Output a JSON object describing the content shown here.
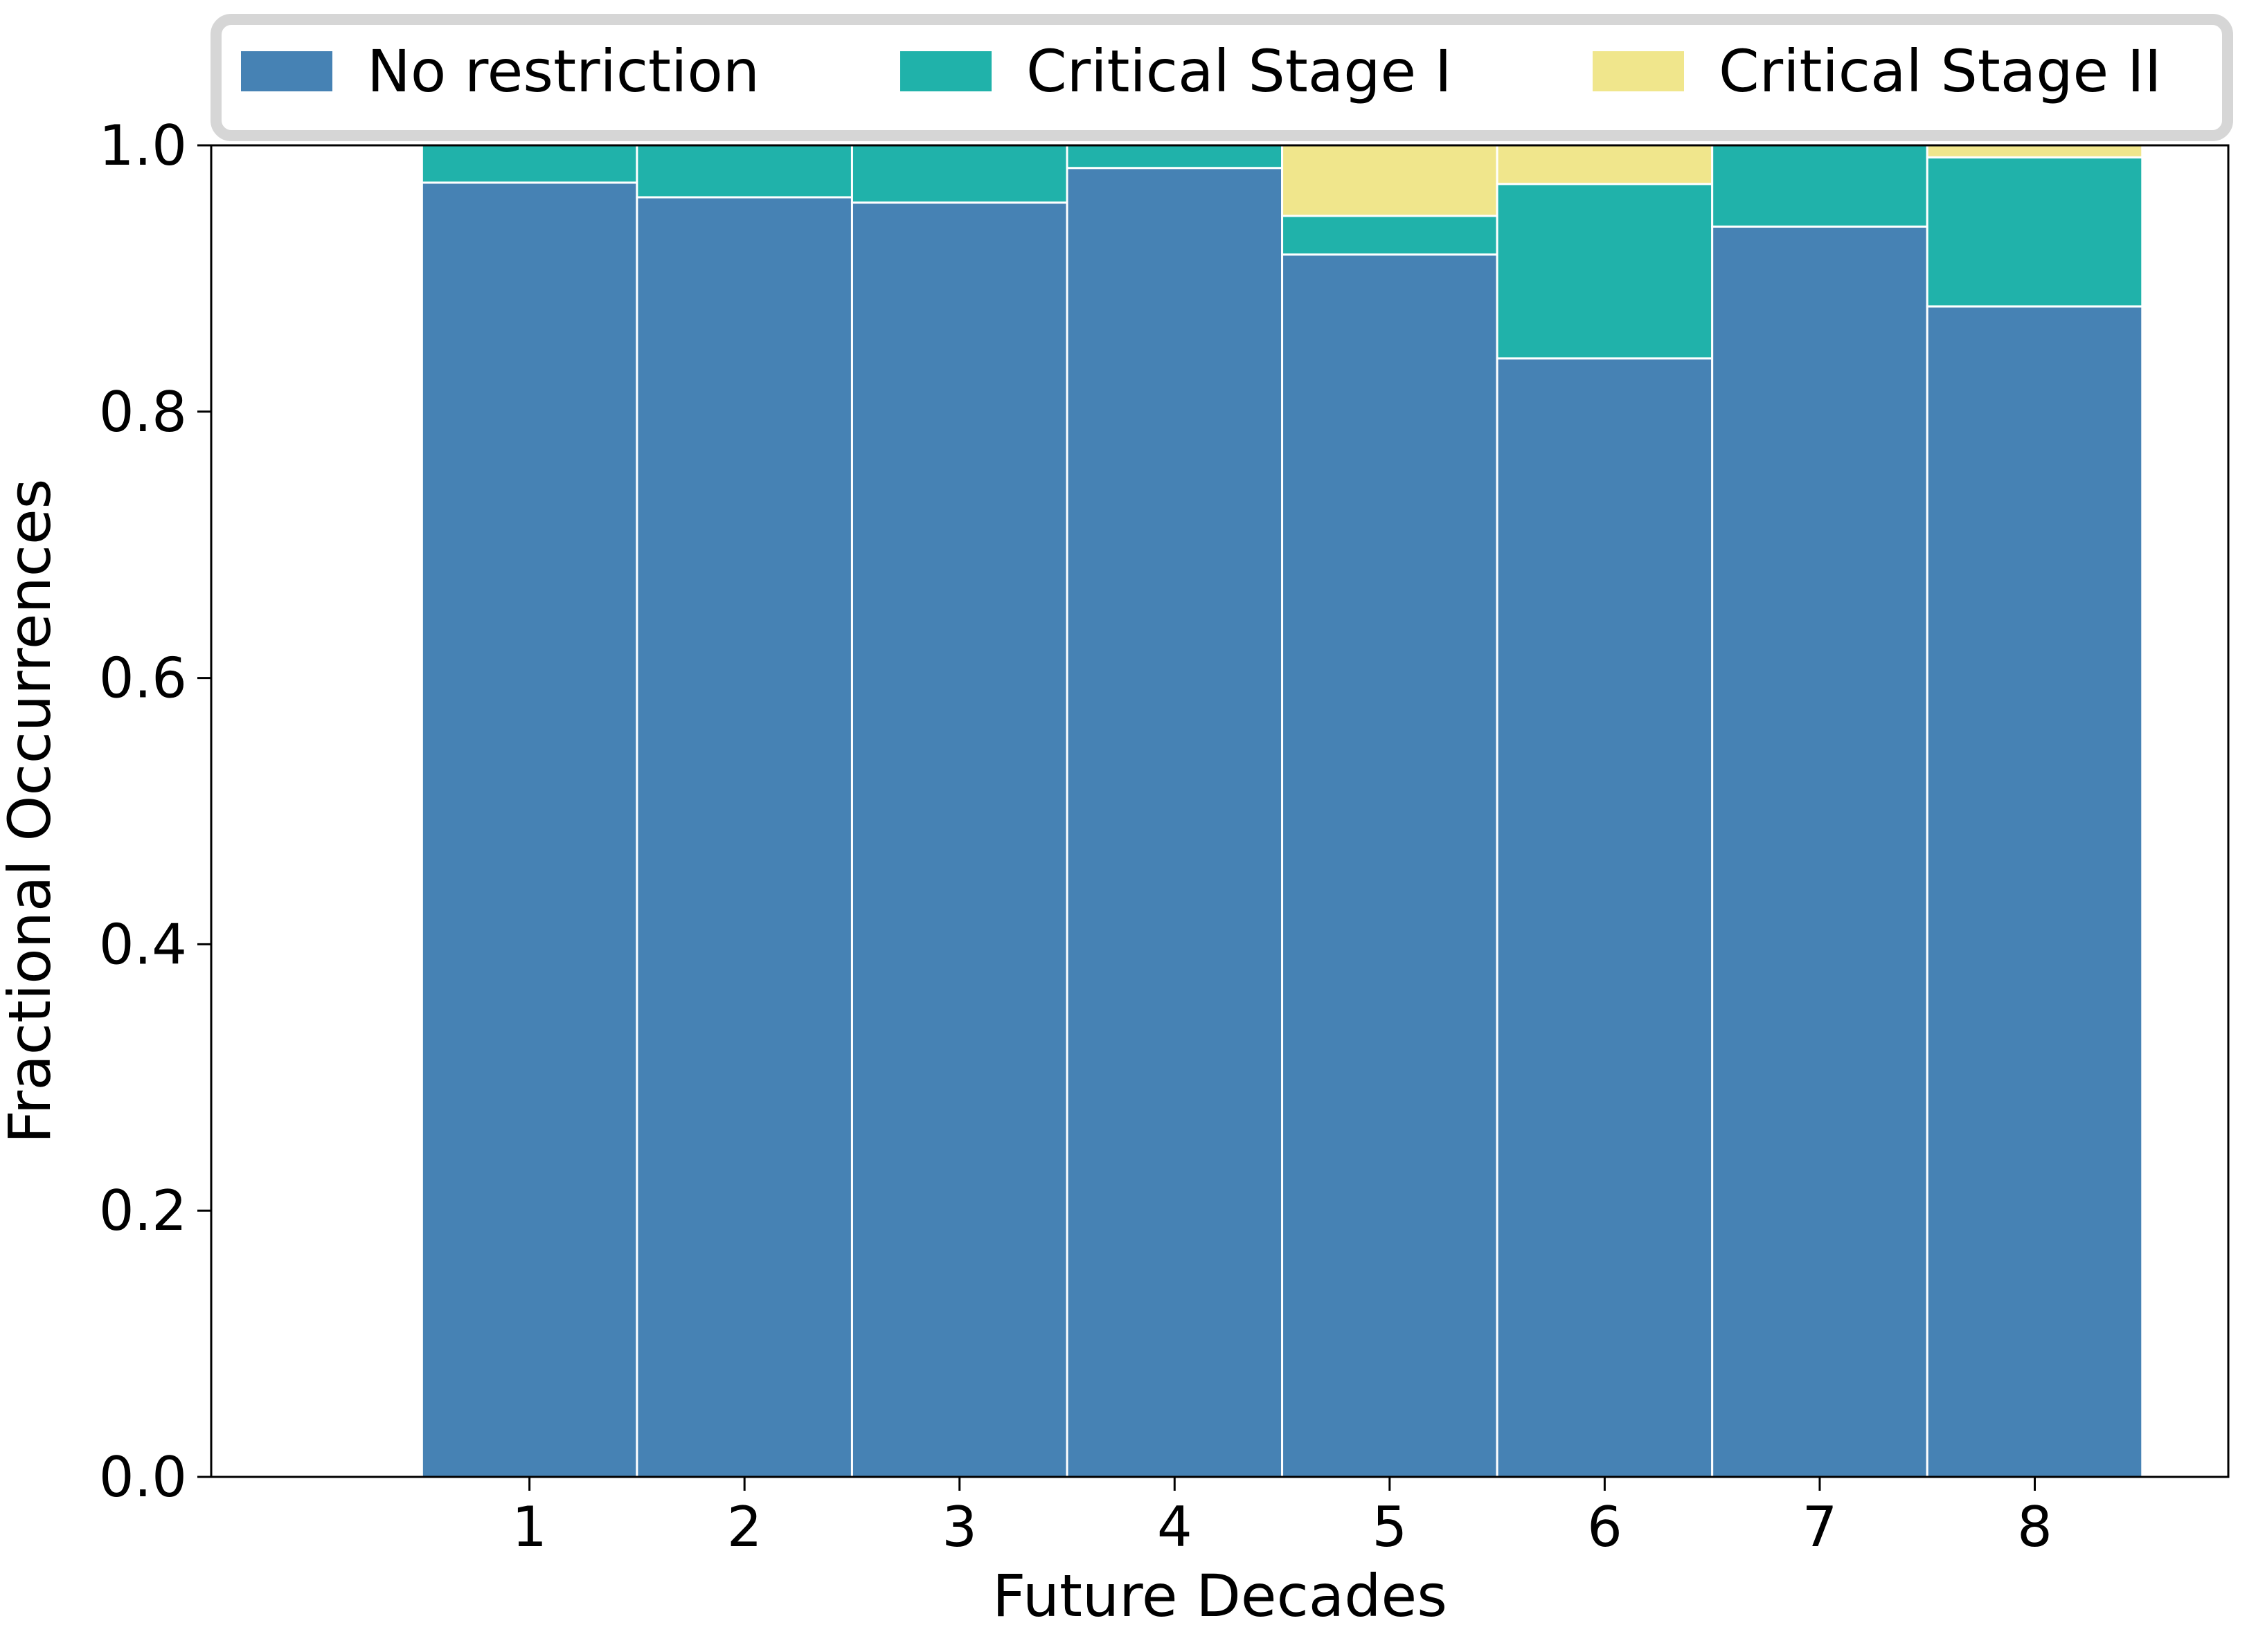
{
  "chart_data": {
    "type": "bar",
    "stacked": true,
    "xlabel": "Future Decades",
    "ylabel": "Fractional Occurrences",
    "categories": [
      "1",
      "2",
      "3",
      "4",
      "5",
      "6",
      "7",
      "8"
    ],
    "ylim": [
      0,
      1.0
    ],
    "yticks": [
      "0.0",
      "0.2",
      "0.4",
      "0.6",
      "0.8",
      "1.0"
    ],
    "grid": false,
    "legend_position": "top",
    "series": [
      {
        "name": "No restriction",
        "color": "#4682b4",
        "values": [
          0.972,
          0.961,
          0.957,
          0.983,
          0.918,
          0.84,
          0.939,
          0.879
        ]
      },
      {
        "name": "Critical Stage I",
        "color": "#20b2aa",
        "values": [
          0.028,
          0.039,
          0.043,
          0.017,
          0.029,
          0.131,
          0.061,
          0.112
        ]
      },
      {
        "name": "Critical Stage II",
        "color": "#f0e68c",
        "values": [
          0.0,
          0.0,
          0.0,
          0.0,
          0.053,
          0.029,
          0.0,
          0.009
        ]
      }
    ]
  }
}
